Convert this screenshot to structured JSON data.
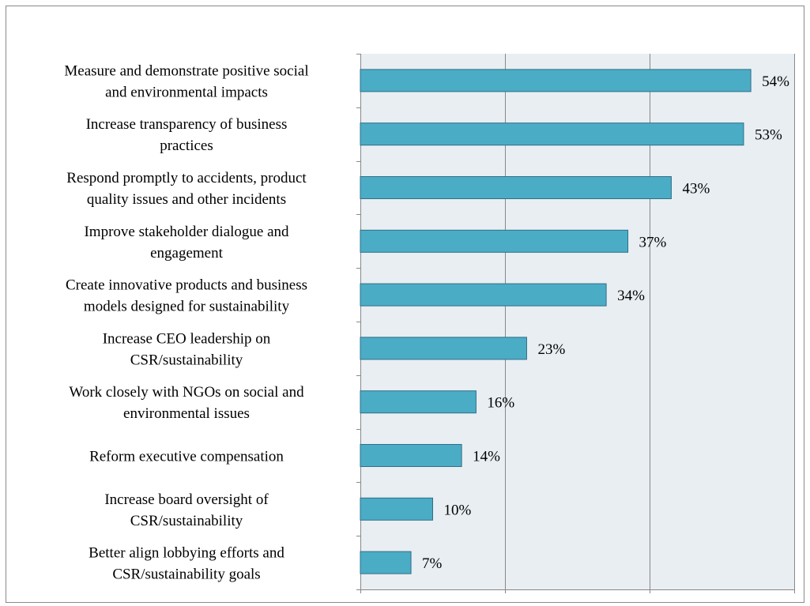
{
  "chart_data": {
    "type": "bar",
    "orientation": "horizontal",
    "categories": [
      [
        "Measure and demonstrate positive social",
        "and environmental impacts"
      ],
      [
        "Increase transparency of business",
        "practices"
      ],
      [
        "Respond promptly to accidents, product",
        "quality issues and other incidents"
      ],
      [
        "Improve stakeholder dialogue and",
        "engagement"
      ],
      [
        "Create innovative products and business",
        "models designed for sustainability"
      ],
      [
        "Increase CEO leadership on",
        "CSR/sustainability"
      ],
      [
        "Work closely with NGOs on social and",
        "environmental issues"
      ],
      [
        "Reform executive compensation"
      ],
      [
        "Increase board oversight of",
        "CSR/sustainability"
      ],
      [
        "Better align lobbying efforts and",
        "CSR/sustainability goals"
      ]
    ],
    "values": [
      54,
      53,
      43,
      37,
      34,
      23,
      16,
      14,
      10,
      7
    ],
    "value_labels": [
      "54%",
      "53%",
      "43%",
      "37%",
      "34%",
      "23%",
      "16%",
      "14%",
      "10%",
      "7%"
    ],
    "xlim": [
      0,
      60
    ],
    "grid": true,
    "grid_step": 20,
    "title": "",
    "xlabel": "",
    "ylabel": "",
    "colors": {
      "bar": "#4bacc6",
      "bar_border": "#2f6f86",
      "plot_background": "#e8eef2",
      "gridline": "#888888",
      "frame": "#8a8a8a"
    }
  }
}
